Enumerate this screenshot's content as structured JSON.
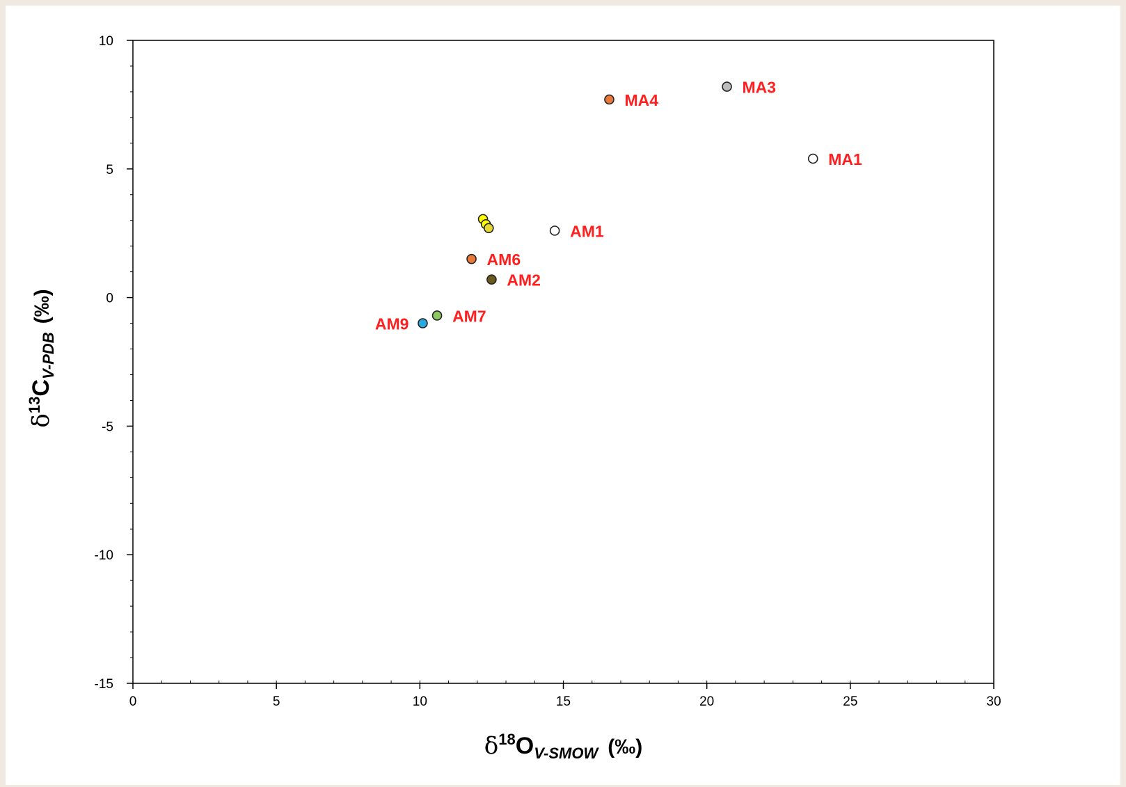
{
  "chart_data": {
    "type": "scatter",
    "xlim": [
      0,
      30
    ],
    "ylim": [
      -15,
      10
    ],
    "x_ticks": [
      0,
      5,
      10,
      15,
      20,
      25,
      30
    ],
    "y_ticks": [
      10,
      5,
      0,
      -5,
      -10,
      -15
    ],
    "x_minor_step": 1,
    "y_minor_step": 1,
    "grid": false,
    "xlabel": {
      "delta": "δ",
      "sup": "18",
      "element": "O",
      "sub": "V-SMOW",
      "unit": "(‰)"
    },
    "ylabel": {
      "delta": "δ",
      "sup": "13",
      "element": "C",
      "sub": "V-PDB",
      "unit": "(‰)"
    },
    "points": [
      {
        "label": "MA3",
        "x": 20.7,
        "y": 8.2,
        "color": "#bdbdbd",
        "label_side": "right"
      },
      {
        "label": "MA4",
        "x": 16.6,
        "y": 7.7,
        "color": "#e8793a",
        "label_side": "right"
      },
      {
        "label": "MA1",
        "x": 23.7,
        "y": 5.4,
        "color": "#ffffff",
        "label_side": "right"
      },
      {
        "label": "",
        "x": 12.2,
        "y": 3.05,
        "color": "#ffff00",
        "label_side": "right"
      },
      {
        "label": "",
        "x": 12.3,
        "y": 2.85,
        "color": "#ffff00",
        "label_side": "right"
      },
      {
        "label": "",
        "x": 12.4,
        "y": 2.7,
        "color": "#e6d832",
        "label_side": "right"
      },
      {
        "label": "AM1",
        "x": 14.7,
        "y": 2.6,
        "color": "#ffffff",
        "label_side": "right"
      },
      {
        "label": "AM6",
        "x": 11.8,
        "y": 1.5,
        "color": "#e8793a",
        "label_side": "right"
      },
      {
        "label": "AM2",
        "x": 12.5,
        "y": 0.7,
        "color": "#6b5a1e",
        "label_side": "right"
      },
      {
        "label": "AM7",
        "x": 10.6,
        "y": -0.7,
        "color": "#8fc760",
        "label_side": "right"
      },
      {
        "label": "AM9",
        "x": 10.1,
        "y": -1.0,
        "color": "#2ba8e0",
        "label_side": "left"
      }
    ]
  }
}
